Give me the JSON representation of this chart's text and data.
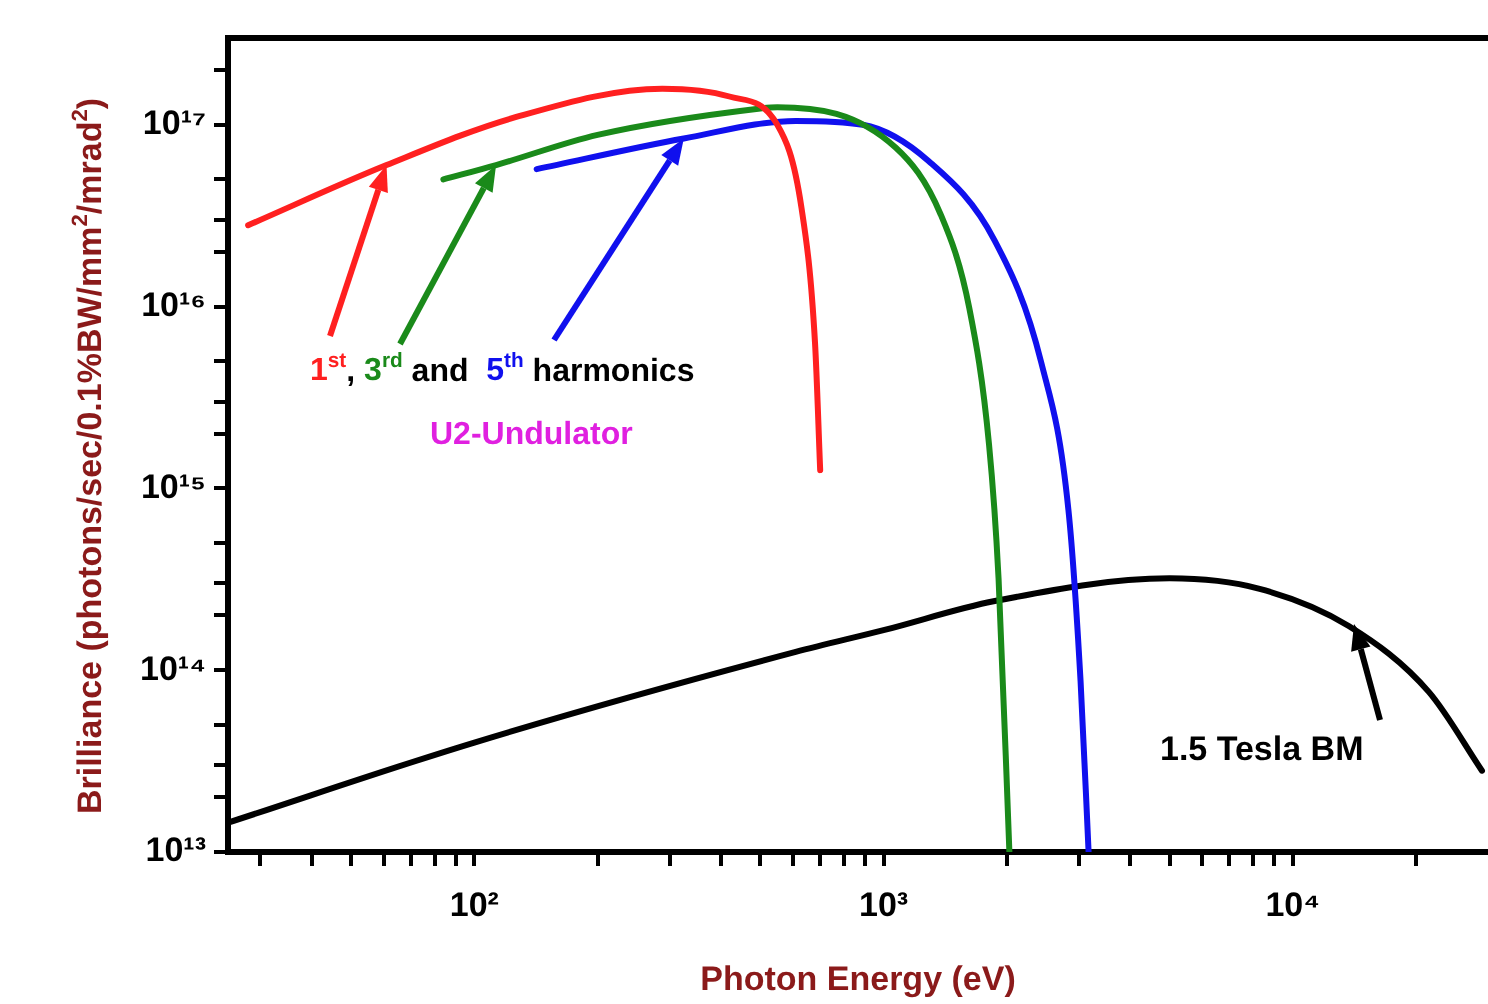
{
  "chart_data": {
    "type": "line",
    "xlabel": "Photon Energy (eV)",
    "ylabel": "Brilliance (photons/sec/0.1%BW/mm$^{2}$/mrad$^{2}$)",
    "log": "xy",
    "grid": false,
    "legend": false,
    "marker": "none",
    "line_style": "solid",
    "xlim": [
      25,
      30000
    ],
    "ylim": [
      10000000000000.0,
      3e+17
    ],
    "xticks": [
      {
        "value": 30,
        "label": null
      },
      {
        "value": 40,
        "label": null
      },
      {
        "value": 50,
        "label": null
      },
      {
        "value": 60,
        "label": null
      },
      {
        "value": 70,
        "label": null
      },
      {
        "value": 80,
        "label": null
      },
      {
        "value": 90,
        "label": null
      },
      {
        "value": 100,
        "label": "10²"
      },
      {
        "value": 200,
        "label": null
      },
      {
        "value": 300,
        "label": null
      },
      {
        "value": 400,
        "label": null
      },
      {
        "value": 500,
        "label": null
      },
      {
        "value": 600,
        "label": null
      },
      {
        "value": 700,
        "label": null
      },
      {
        "value": 800,
        "label": null
      },
      {
        "value": 900,
        "label": null
      },
      {
        "value": 1000,
        "label": "10³"
      },
      {
        "value": 2000,
        "label": null
      },
      {
        "value": 3000,
        "label": null
      },
      {
        "value": 4000,
        "label": null
      },
      {
        "value": 5000,
        "label": null
      },
      {
        "value": 6000,
        "label": null
      },
      {
        "value": 7000,
        "label": null
      },
      {
        "value": 8000,
        "label": null
      },
      {
        "value": 9000,
        "label": null
      },
      {
        "value": 10000,
        "label": "10⁴"
      },
      {
        "value": 20000,
        "label": null
      }
    ],
    "yticks": [
      {
        "value": 10000000000000.0,
        "label": "10¹³"
      },
      {
        "value": 20000000000000.0,
        "label": null
      },
      {
        "value": 30000000000000.0,
        "label": null
      },
      {
        "value": 50000000000000.0,
        "label": null
      },
      {
        "value": 100000000000000.0,
        "label": "10¹⁴"
      },
      {
        "value": 200000000000000.0,
        "label": null
      },
      {
        "value": 300000000000000.0,
        "label": null
      },
      {
        "value": 500000000000000.0,
        "label": null
      },
      {
        "value": 1000000000000000.0,
        "label": "10¹⁵"
      },
      {
        "value": 2000000000000000.0,
        "label": null
      },
      {
        "value": 3000000000000000.0,
        "label": null
      },
      {
        "value": 5000000000000000.0,
        "label": null
      },
      {
        "value": 1e+16,
        "label": "10¹⁶"
      },
      {
        "value": 2e+16,
        "label": null
      },
      {
        "value": 3e+16,
        "label": null
      },
      {
        "value": 5e+16,
        "label": null
      },
      {
        "value": 1e+17,
        "label": "10¹⁷"
      },
      {
        "value": 2e+17,
        "label": null
      }
    ],
    "annotations": [
      "1$^{st}$, 3$^{rd}$ and  5$^{th}$ harmonics",
      "U2-Undulator",
      "1.5 Tesla BM"
    ],
    "series": [
      {
        "color": "#ff2020",
        "x": [
          28,
          61,
          126,
          288,
          420,
          550,
          630,
          680,
          700
        ],
        "values": [
          2.8e+16,
          6e+16,
          1.1e+17,
          1.58e+17,
          1.43e+17,
          1e+17,
          3.5e+16,
          6300000000000000.0,
          1260000000000000.0
        ]
      },
      {
        "color": "#1a8a1a",
        "x": [
          84,
          113,
          200,
          500,
          550,
          1070,
          1380,
          1620,
          1810,
          1910,
          2030
        ],
        "values": [
          5e+16,
          6e+16,
          8.8e+16,
          1.23e+17,
          1.25e+17,
          7.5e+16,
          3.2e+16,
          9800000000000000.0,
          1750000000000000.0,
          320000000000000.0,
          10000000000000.0
        ]
      },
      {
        "color": "#1010ee",
        "x": [
          142,
          325,
          610,
          890,
          1290,
          1870,
          2430,
          2830,
          3030,
          3170
        ],
        "values": [
          5.7e+16,
          8.4e+16,
          1.05e+17,
          1e+17,
          6.3e+16,
          2.3e+16,
          4900000000000000.0,
          760000000000000.0,
          87000000000000.0,
          10000000000000.0
        ]
      },
      {
        "color": "#000000",
        "x": [
          25,
          100,
          610,
          1000,
          1870,
          5000,
          8300,
          13700,
          21500,
          29000
        ],
        "values": [
          14500000000000.0,
          40000000000000.0,
          126000000000000.0,
          166000000000000.0,
          240000000000000.0,
          320000000000000.0,
          280000000000000.0,
          175000000000000.0,
          76000000000000.0,
          28000000000000.0
        ]
      }
    ]
  }
}
